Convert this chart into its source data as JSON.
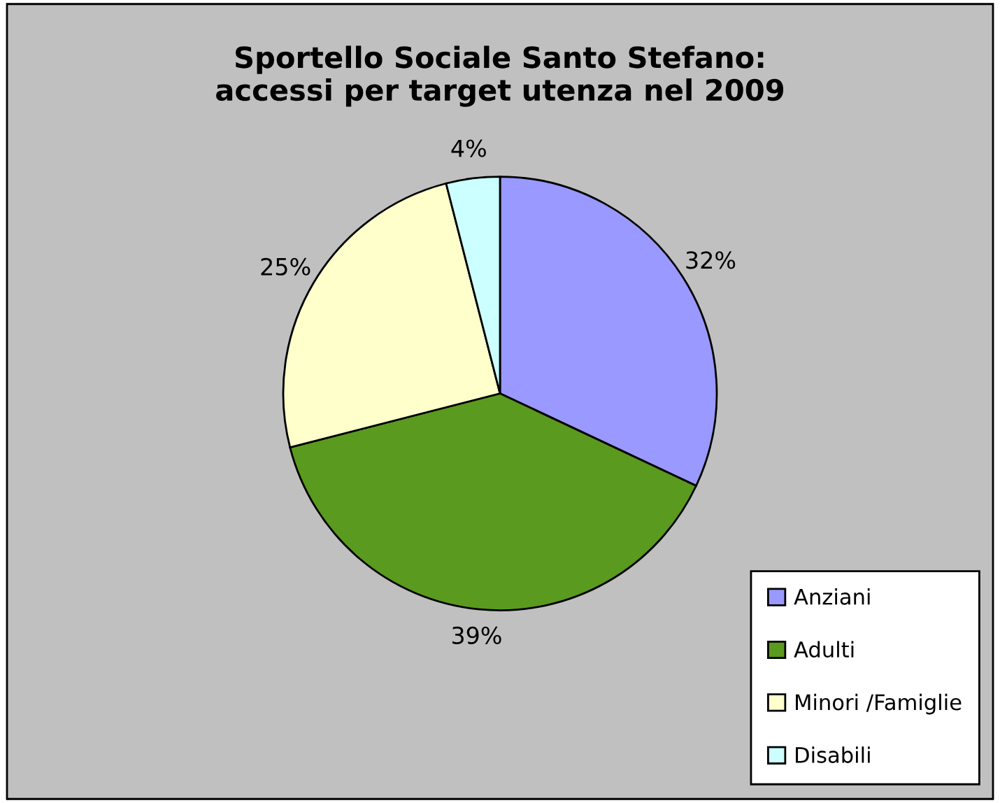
{
  "chart_data": {
    "type": "pie",
    "title": "Sportello Sociale Santo Stefano:\naccessi per target utenza nel 2009",
    "categories": [
      "Anziani",
      "Adulti",
      "Minori /Famiglie",
      "Disabili"
    ],
    "values": [
      32,
      39,
      25,
      4
    ],
    "colors": [
      "#9999ff",
      "#5a9a1e",
      "#ffffcc",
      "#ccffff"
    ],
    "value_labels": [
      "32%",
      "39%",
      "25%",
      "4%"
    ],
    "legend": "bottom right"
  }
}
